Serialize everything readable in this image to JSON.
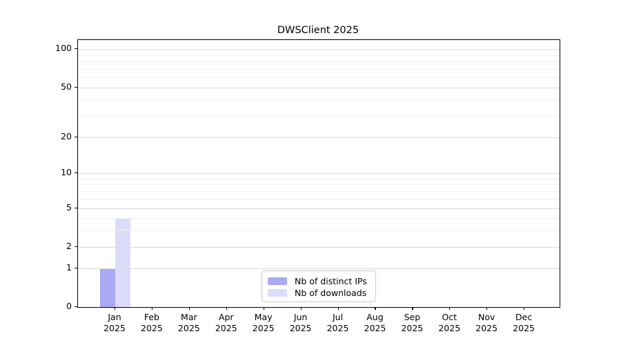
{
  "title": "DWSClient 2025",
  "chart_data": {
    "type": "bar",
    "title": "DWSClient 2025",
    "xlabel": "",
    "ylabel": "",
    "categories": [
      "Jan 2025",
      "Feb 2025",
      "Mar 2025",
      "Apr 2025",
      "May 2025",
      "Jun 2025",
      "Jul 2025",
      "Aug 2025",
      "Sep 2025",
      "Oct 2025",
      "Nov 2025",
      "Dec 2025"
    ],
    "series": [
      {
        "name": "Nb of distinct IPs",
        "color": "#a9a9f6",
        "values": [
          1,
          0,
          0,
          0,
          0,
          0,
          0,
          0,
          0,
          0,
          0,
          0
        ]
      },
      {
        "name": "Nb of downloads",
        "color": "#dcdcfa",
        "values": [
          4,
          0,
          0,
          0,
          0,
          0,
          0,
          0,
          0,
          0,
          0,
          0
        ]
      }
    ],
    "y_scale": "symlog",
    "y_major_ticks": [
      0,
      1,
      2,
      5,
      10,
      20,
      50,
      100
    ],
    "y_minor_ticks": [
      3,
      4,
      6,
      7,
      8,
      9,
      30,
      40,
      60,
      70,
      80,
      90
    ],
    "ylim": [
      0,
      120
    ],
    "grid": "horizontal",
    "legend_position": "lower center inside plot"
  }
}
